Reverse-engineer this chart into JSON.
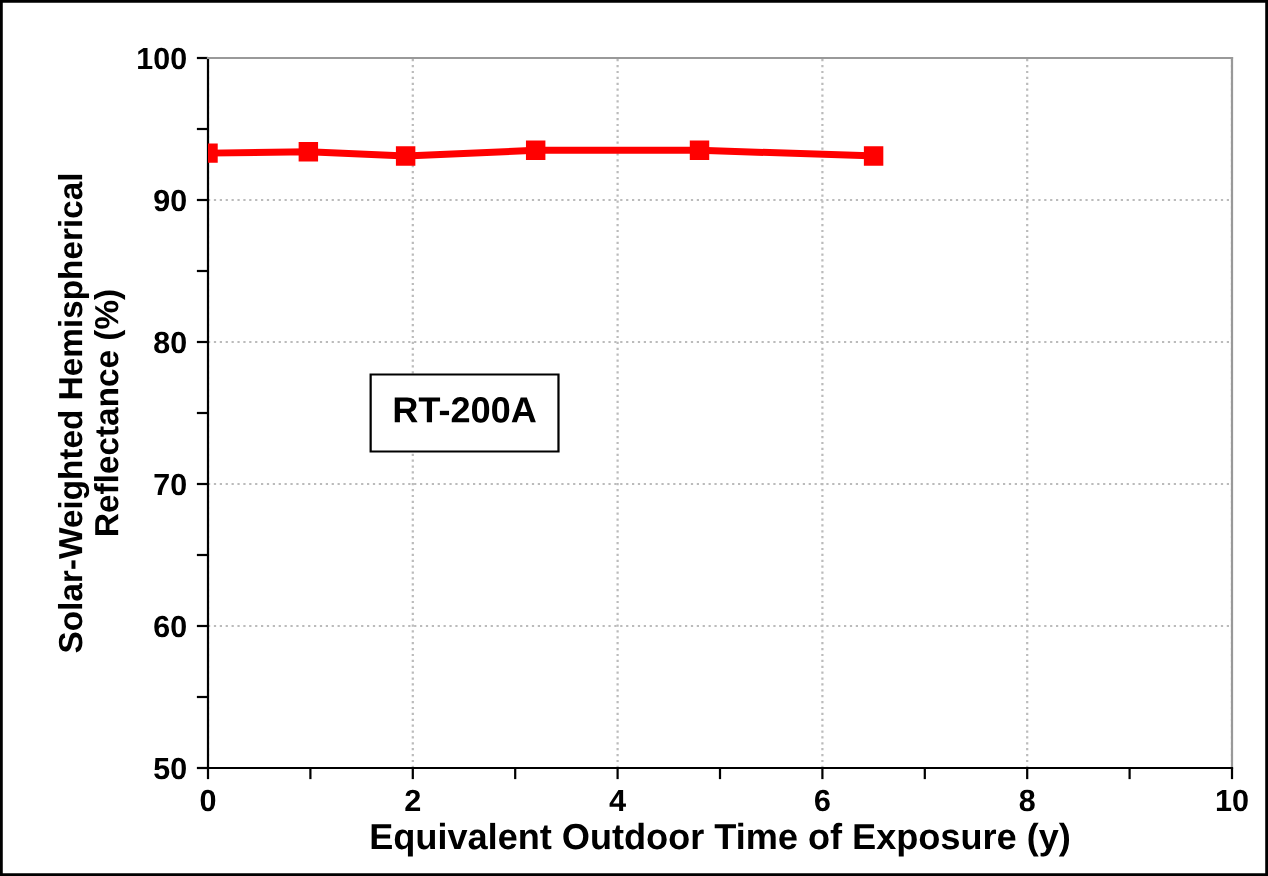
{
  "chart_data": {
    "type": "line",
    "xlabel": "Equivalent Outdoor Time of Exposure (y)",
    "ylabel": "Solar-Weighted Hemispherical\nReflectance (%)",
    "x": [
      0,
      0.98,
      1.93,
      3.2,
      4.8,
      6.5
    ],
    "series": [
      {
        "color": "#ff0000",
        "values": [
          93.3,
          93.4,
          93.1,
          93.5,
          93.5,
          93.1
        ]
      }
    ],
    "marker": "square",
    "line_style": "solid",
    "xlim": [
      0,
      10
    ],
    "xticks": [
      0,
      {
        "value": 1,
        "label": null
      },
      2,
      {
        "value": 3,
        "label": null
      },
      4,
      {
        "value": 5,
        "label": null
      },
      6,
      {
        "value": 7,
        "label": null
      },
      8,
      {
        "value": 9,
        "label": null
      },
      10
    ],
    "ylim": [
      50,
      100
    ],
    "yticks": [
      50,
      {
        "value": 55,
        "label": null
      },
      60,
      {
        "value": 65,
        "label": null
      },
      70,
      {
        "value": 75,
        "label": null
      },
      80,
      {
        "value": 85,
        "label": null
      },
      90,
      {
        "value": 95,
        "label": null
      },
      100
    ],
    "grid": true,
    "annotations": [
      {
        "text": "RT-200A"
      }
    ]
  }
}
